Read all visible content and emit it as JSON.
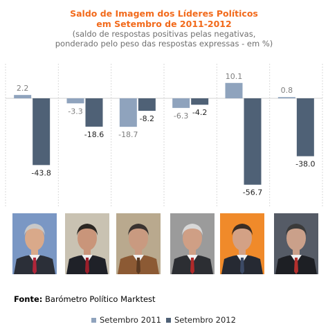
{
  "chart_data": {
    "type": "bar",
    "title": "Saldo de Imagem dos Líderes Políticos",
    "title_line2": "em Setembro de 2011-2012",
    "subtitle_line1": "(saldo de respostas positivas pelas negativas,",
    "subtitle_line2": "ponderado pelo peso das respostas expressas - em %)",
    "categories": [
      "",
      "",
      "",
      "",
      "",
      ""
    ],
    "series": [
      {
        "name": "Setembro 2011",
        "color": "#8fa3bd",
        "values": [
          2.2,
          -3.3,
          -18.7,
          -6.3,
          10.1,
          0.8
        ]
      },
      {
        "name": "Setembro 2012",
        "color": "#4f6176",
        "values": [
          -43.8,
          -18.6,
          -8.2,
          -4.2,
          -56.7,
          -38.0
        ]
      }
    ],
    "labels": [
      [
        "2.2",
        "-3.3",
        "-18.7",
        "-6.3",
        "10.1",
        "0.8"
      ],
      [
        "-43.8",
        "-18.6",
        "-8.2",
        "-4.2",
        "-56.7",
        "-38.0"
      ]
    ],
    "ylim": [
      -60,
      12
    ],
    "grid": false,
    "legend": "bottom"
  },
  "source": {
    "label": "Fonte:",
    "text": " Barómetro Político Marktest"
  },
  "photos": [
    {
      "icon": "politician-portrait-icon",
      "bg": "#7a97c4",
      "suit": "#2b2f38",
      "tie": "#b0263a",
      "hair": "#c8c8c8",
      "skin": "#d9a98a"
    },
    {
      "icon": "politician-portrait-icon",
      "bg": "#c9c2b2",
      "suit": "#1f2128",
      "tie": "#9b1f2b",
      "hair": "#2a2622",
      "skin": "#c9957a"
    },
    {
      "icon": "politician-portrait-icon",
      "bg": "#b9a98e",
      "suit": "#8c5a34",
      "tie": "#5a3a22",
      "hair": "#3a3330",
      "skin": "#c99a80"
    },
    {
      "icon": "politician-portrait-icon",
      "bg": "#9b9b9b",
      "suit": "#2c2e33",
      "tie": "#b02a2a",
      "hair": "#d8d8d8",
      "skin": "#cf9f85"
    },
    {
      "icon": "politician-portrait-icon",
      "bg": "#f08a2a",
      "suit": "#262a33",
      "tie": "#3c4a66",
      "hair": "#3b2d24",
      "skin": "#d3a185"
    },
    {
      "icon": "politician-portrait-icon",
      "bg": "#555b66",
      "suit": "#1d1f24",
      "tie": "#b3302e",
      "hair": "#3a3a3a",
      "skin": "#caa08a"
    }
  ]
}
